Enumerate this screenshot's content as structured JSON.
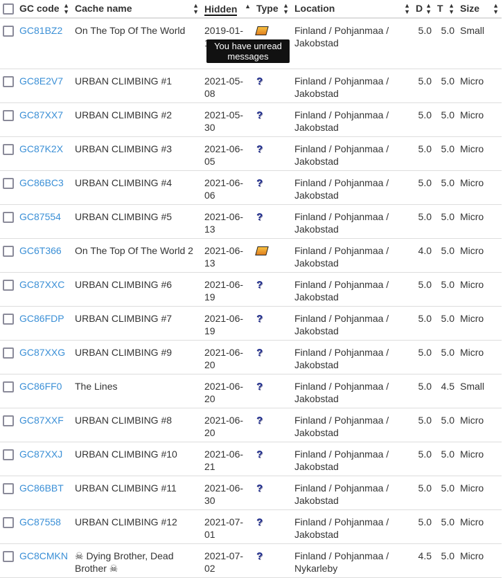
{
  "tooltip": "You have unread messages",
  "headers": {
    "code": "GC code",
    "name": "Cache name",
    "hidden": "Hidden",
    "type": "Type",
    "location": "Location",
    "d": "D",
    "t": "T",
    "size": "Size"
  },
  "rows": [
    {
      "code": "GC81BZ2",
      "name": "On The Top Of The World",
      "hidden": "2019-01-19",
      "type": "multi-cache-icon",
      "loc1": "Finland / Pohjanmaa /",
      "loc2": "Jakobstad",
      "d": "5.0",
      "t": "5.0",
      "size": "Small"
    },
    {
      "code": "GC8E2V7",
      "name": "URBAN CLIMBING #1",
      "hidden": "2021-05-08",
      "type": "mystery-cache-icon",
      "loc1": "Finland / Pohjanmaa /",
      "loc2": "Jakobstad",
      "d": "5.0",
      "t": "5.0",
      "size": "Micro"
    },
    {
      "code": "GC87XX7",
      "name": "URBAN CLIMBING #2",
      "hidden": "2021-05-30",
      "type": "mystery-cache-icon",
      "loc1": "Finland / Pohjanmaa /",
      "loc2": "Jakobstad",
      "d": "5.0",
      "t": "5.0",
      "size": "Micro"
    },
    {
      "code": "GC87K2X",
      "name": "URBAN CLIMBING #3",
      "hidden": "2021-06-05",
      "type": "mystery-cache-icon",
      "loc1": "Finland / Pohjanmaa /",
      "loc2": "Jakobstad",
      "d": "5.0",
      "t": "5.0",
      "size": "Micro"
    },
    {
      "code": "GC86BC3",
      "name": "URBAN CLIMBING #4",
      "hidden": "2021-06-06",
      "type": "mystery-cache-icon",
      "loc1": "Finland / Pohjanmaa /",
      "loc2": "Jakobstad",
      "d": "5.0",
      "t": "5.0",
      "size": "Micro"
    },
    {
      "code": "GC87554",
      "name": "URBAN CLIMBING #5",
      "hidden": "2021-06-13",
      "type": "mystery-cache-icon",
      "loc1": "Finland / Pohjanmaa /",
      "loc2": "Jakobstad",
      "d": "5.0",
      "t": "5.0",
      "size": "Micro"
    },
    {
      "code": "GC6T366",
      "name": "On The Top Of The World 2",
      "hidden": "2021-06-13",
      "type": "multi-cache-icon",
      "loc1": "Finland / Pohjanmaa /",
      "loc2": "Jakobstad",
      "d": "4.0",
      "t": "5.0",
      "size": "Micro"
    },
    {
      "code": "GC87XXC",
      "name": "URBAN CLIMBING #6",
      "hidden": "2021-06-19",
      "type": "mystery-cache-icon",
      "loc1": "Finland / Pohjanmaa /",
      "loc2": "Jakobstad",
      "d": "5.0",
      "t": "5.0",
      "size": "Micro"
    },
    {
      "code": "GC86FDP",
      "name": "URBAN CLIMBING #7",
      "hidden": "2021-06-19",
      "type": "mystery-cache-icon",
      "loc1": "Finland / Pohjanmaa /",
      "loc2": "Jakobstad",
      "d": "5.0",
      "t": "5.0",
      "size": "Micro"
    },
    {
      "code": "GC87XXG",
      "name": "URBAN CLIMBING #9",
      "hidden": "2021-06-20",
      "type": "mystery-cache-icon",
      "loc1": "Finland / Pohjanmaa /",
      "loc2": "Jakobstad",
      "d": "5.0",
      "t": "5.0",
      "size": "Micro"
    },
    {
      "code": "GC86FF0",
      "name": "The Lines",
      "hidden": "2021-06-20",
      "type": "mystery-cache-icon",
      "loc1": "Finland / Pohjanmaa /",
      "loc2": "Jakobstad",
      "d": "5.0",
      "t": "4.5",
      "size": "Small"
    },
    {
      "code": "GC87XXF",
      "name": "URBAN CLIMBING #8",
      "hidden": "2021-06-20",
      "type": "mystery-cache-icon",
      "loc1": "Finland / Pohjanmaa /",
      "loc2": "Jakobstad",
      "d": "5.0",
      "t": "5.0",
      "size": "Micro"
    },
    {
      "code": "GC87XXJ",
      "name": "URBAN CLIMBING #10",
      "hidden": "2021-06-21",
      "type": "mystery-cache-icon",
      "loc1": "Finland / Pohjanmaa /",
      "loc2": "Jakobstad",
      "d": "5.0",
      "t": "5.0",
      "size": "Micro"
    },
    {
      "code": "GC86BBT",
      "name": "URBAN CLIMBING #11",
      "hidden": "2021-06-30",
      "type": "mystery-cache-icon",
      "loc1": "Finland / Pohjanmaa /",
      "loc2": "Jakobstad",
      "d": "5.0",
      "t": "5.0",
      "size": "Micro"
    },
    {
      "code": "GC87558",
      "name": "URBAN CLIMBING #12",
      "hidden": "2021-07-01",
      "type": "mystery-cache-icon",
      "loc1": "Finland / Pohjanmaa /",
      "loc2": "Jakobstad",
      "d": "5.0",
      "t": "5.0",
      "size": "Micro"
    },
    {
      "code": "GC8CMKN",
      "name": "☠ Dying Brother, Dead Brother ☠",
      "hidden": "2021-07-02",
      "type": "mystery-cache-icon",
      "loc1": "Finland / Pohjanmaa /",
      "loc2": "Nykarleby",
      "d": "4.5",
      "t": "5.0",
      "size": "Micro"
    }
  ]
}
